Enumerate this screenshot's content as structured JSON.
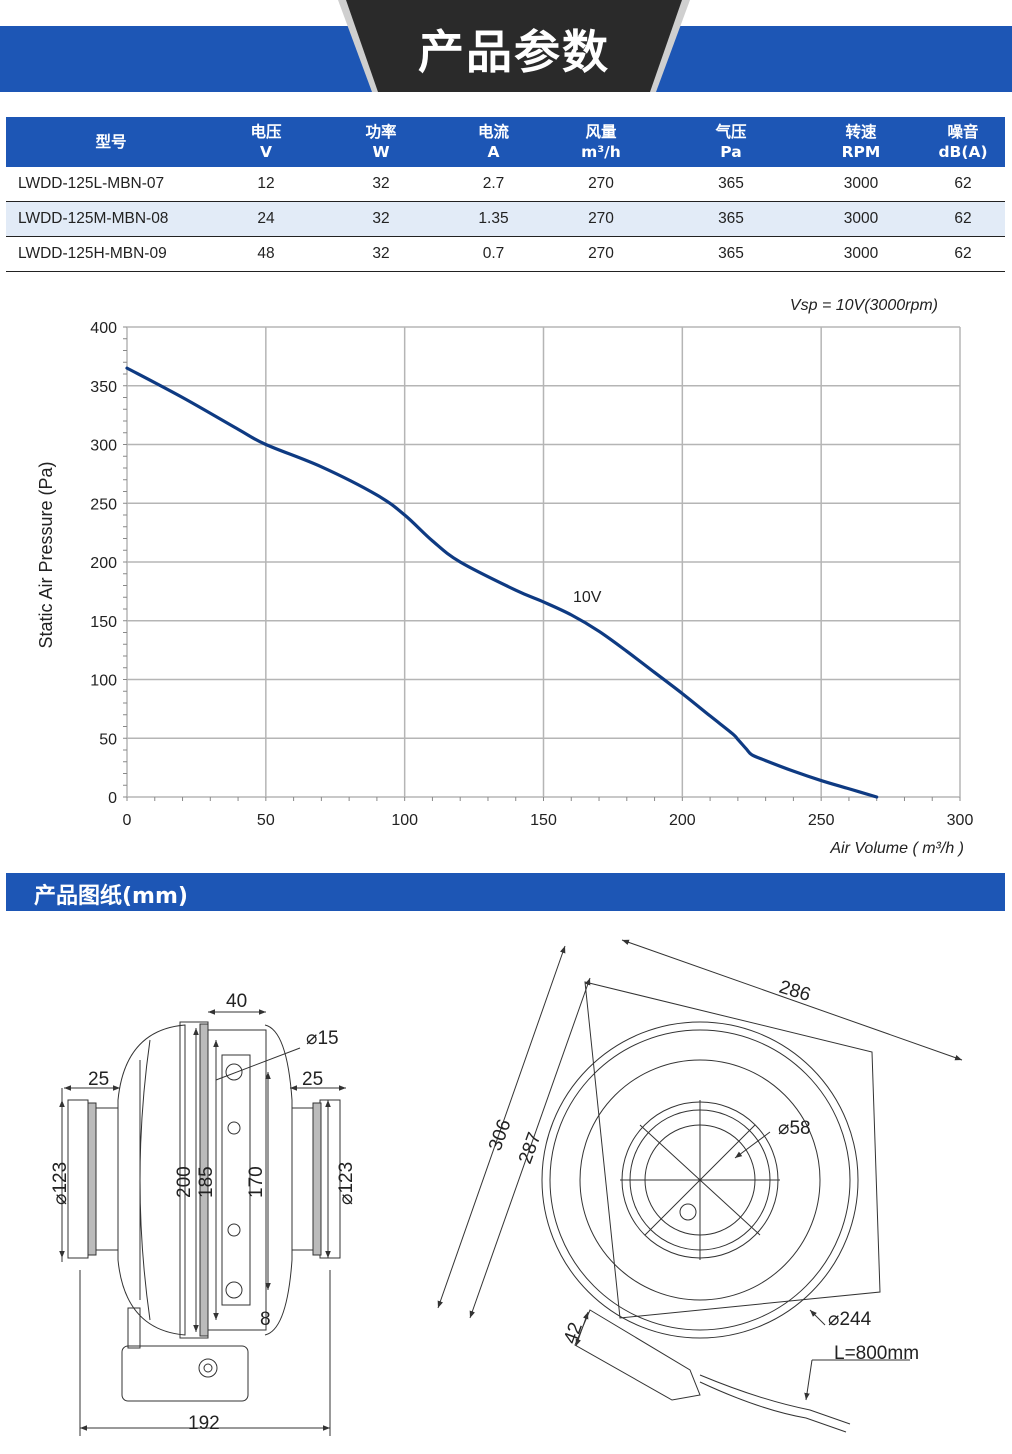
{
  "header": {
    "title": "产品参数"
  },
  "spec_table": {
    "columns": [
      {
        "line1": "型号",
        "line2": ""
      },
      {
        "line1": "电压",
        "line2": "V"
      },
      {
        "line1": "功率",
        "line2": "W"
      },
      {
        "line1": "电流",
        "line2": "A"
      },
      {
        "line1": "风量",
        "line2": "m³/h"
      },
      {
        "line1": "气压",
        "line2": "Pa"
      },
      {
        "line1": "转速",
        "line2": "RPM"
      },
      {
        "line1": "噪音",
        "line2": "dB(A)"
      }
    ],
    "rows": [
      [
        "LWDD-125L-MBN-07",
        "12",
        "32",
        "2.7",
        "270",
        "365",
        "3000",
        "62"
      ],
      [
        "LWDD-125M-MBN-08",
        "24",
        "32",
        "1.35",
        "270",
        "365",
        "3000",
        "62"
      ],
      [
        "LWDD-125H-MBN-09",
        "48",
        "32",
        "0.7",
        "270",
        "365",
        "3000",
        "62"
      ]
    ]
  },
  "chart_data": {
    "type": "line",
    "title": "Vsp = 10V(3000rpm)",
    "xlabel": "Air Volume ( m³/h )",
    "ylabel": "Static Air Pressure  (Pa)",
    "xlim": [
      0,
      300
    ],
    "ylim": [
      0,
      400
    ],
    "xticks": [
      0,
      50,
      100,
      150,
      200,
      250,
      300
    ],
    "yticks": [
      0,
      50,
      100,
      150,
      200,
      250,
      300,
      350,
      400
    ],
    "grid": true,
    "series": [
      {
        "name": "10V",
        "color": "#0e3a82",
        "x": [
          0,
          20,
          40,
          50,
          70,
          90,
          100,
          110,
          120,
          140,
          150,
          160,
          170,
          180,
          190,
          200,
          210,
          218,
          220,
          223,
          225,
          230,
          240,
          250,
          260,
          270
        ],
        "y": [
          365,
          340,
          313,
          300,
          281,
          257,
          240,
          218,
          200,
          176,
          166,
          155,
          141,
          124,
          106,
          88,
          69,
          54,
          49,
          41,
          36,
          31,
          22,
          14,
          7,
          0
        ]
      }
    ]
  },
  "drawing_section": {
    "title": "产品图纸(mm)"
  },
  "drawing": {
    "dims": {
      "d40": "40",
      "d15": "⌀15",
      "d25a": "25",
      "d25b": "25",
      "d123a": "⌀123",
      "d123b": "⌀123",
      "d200": "200",
      "d185": "185",
      "d170": "170",
      "d8": "8",
      "d192": "192",
      "d286": "286",
      "d306": "306",
      "d287": "287",
      "d58": "⌀58",
      "d244": "⌀244",
      "d42": "42",
      "cable": "L=800mm"
    }
  }
}
